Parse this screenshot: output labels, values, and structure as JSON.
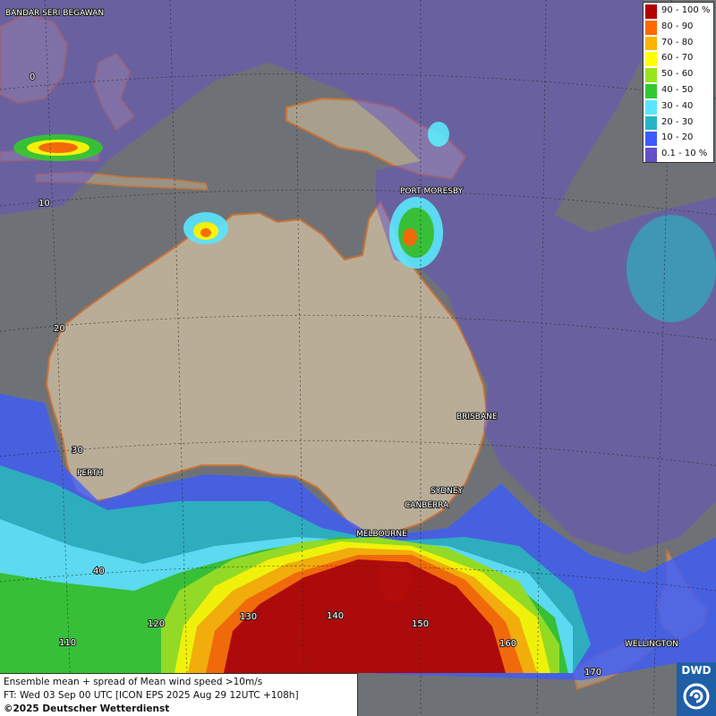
{
  "legend": {
    "entries": [
      {
        "label": "90 - 100 %",
        "color": "#b40000"
      },
      {
        "label": "80 - 90",
        "color": "#ff6a00"
      },
      {
        "label": "70 - 80",
        "color": "#ffb400"
      },
      {
        "label": "60 - 70",
        "color": "#ffff00"
      },
      {
        "label": "50 - 60",
        "color": "#96e61e"
      },
      {
        "label": "40 - 50",
        "color": "#32c832"
      },
      {
        "label": "30 - 40",
        "color": "#5ae6ff"
      },
      {
        "label": "20 - 30",
        "color": "#28b4c8"
      },
      {
        "label": "10 - 20",
        "color": "#3c5aff"
      },
      {
        "label": "0.1 - 10 %",
        "color": "#6450c8"
      }
    ]
  },
  "info": {
    "line1": "Ensemble mean + spread of Mean wind speed >10m/s",
    "line2": "FT: Wed 03 Sep 00 UTC [ICON EPS 2025 Aug 29 12UTC +108h]",
    "line3": "©2025 Deutscher Wetterdienst"
  },
  "logo": {
    "text": "DWD"
  },
  "cities": [
    {
      "name": "BANDAR SERI BEGAWAN"
    },
    {
      "name": "PORT MORESBY"
    },
    {
      "name": "BRISBANE"
    },
    {
      "name": "PERTH"
    },
    {
      "name": "SYDNEY"
    },
    {
      "name": "CANBERRA"
    },
    {
      "name": "MELBOURNE"
    },
    {
      "name": "WELLINGTON"
    }
  ],
  "grid_labels": [
    "0",
    "10",
    "20",
    "30",
    "40",
    "110",
    "120",
    "130",
    "140",
    "150",
    "160",
    "170"
  ],
  "colors": {
    "ocean": "#6e7276",
    "land": "#b9ad97",
    "coast": "#c8733a"
  }
}
